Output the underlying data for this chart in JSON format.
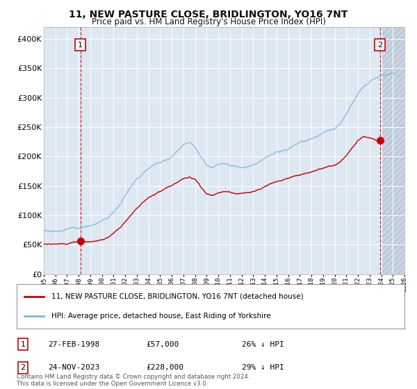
{
  "title": "11, NEW PASTURE CLOSE, BRIDLINGTON, YO16 7NT",
  "subtitle": "Price paid vs. HM Land Registry's House Price Index (HPI)",
  "legend_line1": "11, NEW PASTURE CLOSE, BRIDLINGTON, YO16 7NT (detached house)",
  "legend_line2": "HPI: Average price, detached house, East Riding of Yorkshire",
  "annotation1_date": "27-FEB-1998",
  "annotation1_price": "£57,000",
  "annotation1_hpi": "26% ↓ HPI",
  "annotation2_date": "24-NOV-2023",
  "annotation2_price": "£228,000",
  "annotation2_hpi": "29% ↓ HPI",
  "footnote": "Contains HM Land Registry data © Crown copyright and database right 2024.\nThis data is licensed under the Open Government Licence v3.0.",
  "sale1_year": 1998.15,
  "sale1_price": 57000,
  "sale2_year": 2023.9,
  "sale2_price": 228000,
  "hpi_color": "#7ab4d8",
  "price_color": "#cc0000",
  "dashed_color": "#cc0000",
  "background_chart": "#dde8f2",
  "ylim_max": 420000,
  "xlim_min": 1995,
  "xlim_max": 2026
}
